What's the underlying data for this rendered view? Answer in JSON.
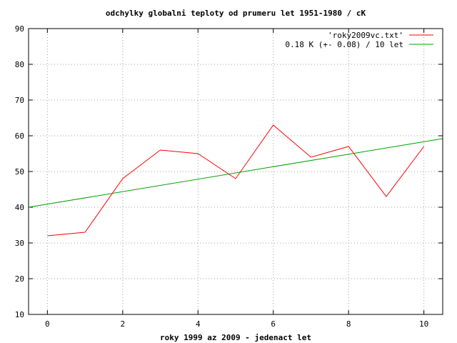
{
  "chart_data": {
    "type": "line",
    "title": "odchylky globalni teploty od prumeru let 1951-1980 / cK",
    "xlabel": "roky 1999 az 2009 - jedenact let",
    "ylabel": "",
    "xlim": [
      -0.5,
      10.5
    ],
    "ylim": [
      10,
      90
    ],
    "xticks": [
      0,
      2,
      4,
      6,
      8,
      10
    ],
    "yticks": [
      10,
      20,
      30,
      40,
      50,
      60,
      70,
      80,
      90
    ],
    "grid": true,
    "legend_position": "top-right",
    "series": [
      {
        "name": "'roky2009vc.txt'",
        "color": "#ff0000",
        "x": [
          0,
          1,
          2,
          3,
          4,
          5,
          6,
          7,
          8,
          9,
          10
        ],
        "y": [
          32,
          33,
          48,
          56,
          55,
          48,
          63,
          54,
          57,
          43,
          57
        ]
      },
      {
        "name": "0.18 K (+- 0.08) / 10 let",
        "color": "#00a000",
        "x": [
          -0.5,
          10.5
        ],
        "y": [
          40,
          59.2
        ]
      }
    ]
  }
}
